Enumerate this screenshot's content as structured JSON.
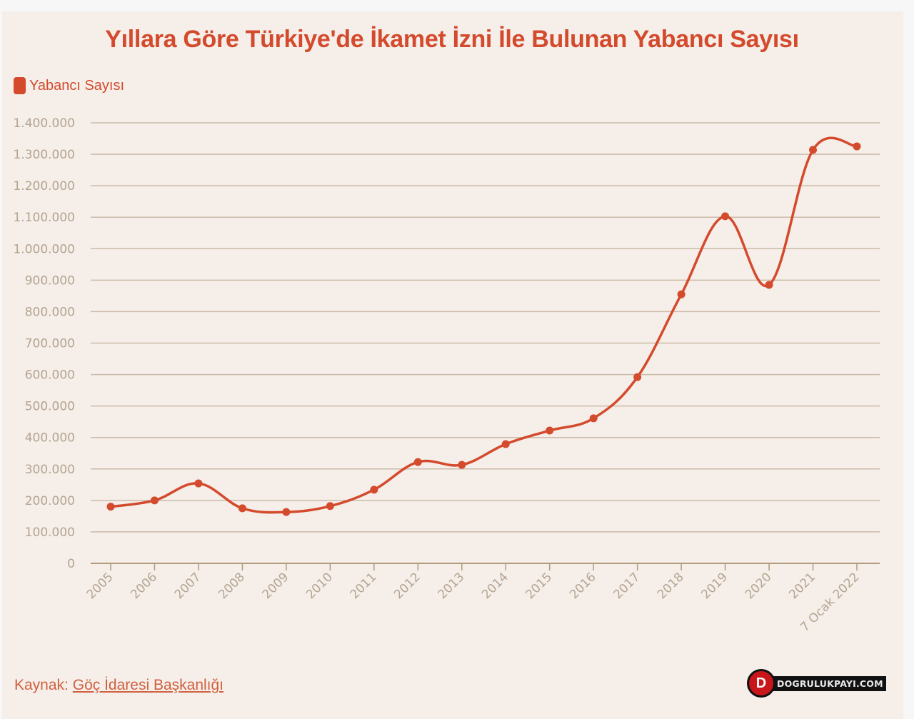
{
  "header": {
    "title": "Yıllara Göre Türkiye'de İkamet İzni İle Bulunan Yabancı Sayısı"
  },
  "legend": {
    "label": "Yabancı Sayısı",
    "color": "#d44a2c"
  },
  "footer": {
    "source_prefix": "Kaynak:",
    "source_link": "Göç İdaresi Başkanlığı",
    "brand": "DOGRULUKPAYI.COM",
    "brand_icon": "d-logo-icon"
  },
  "colors": {
    "line": "#d44a2c",
    "grid": "#cbbba8",
    "axis": "#b49a7c",
    "tick_label": "#b5a592",
    "background": "#f5eee9"
  },
  "chart_data": {
    "type": "line",
    "title": "Yıllara Göre Türkiye'de İkamet İzni İle Bulunan Yabancı Sayısı",
    "xlabel": "",
    "ylabel": "",
    "legend_position": "top-left",
    "grid": true,
    "smooth": true,
    "ylim": [
      0,
      1400000
    ],
    "yticks": [
      0,
      100000,
      200000,
      300000,
      400000,
      500000,
      600000,
      700000,
      800000,
      900000,
      1000000,
      1100000,
      1200000,
      1300000,
      1400000
    ],
    "ytick_labels": [
      "0",
      "100.000",
      "200.000",
      "300.000",
      "400.000",
      "500.000",
      "600.000",
      "700.000",
      "800.000",
      "900.000",
      "1.000.000",
      "1.100.000",
      "1.200.000",
      "1.300.000",
      "1.400.000"
    ],
    "categories": [
      "2005",
      "2006",
      "2007",
      "2008",
      "2009",
      "2010",
      "2011",
      "2012",
      "2013",
      "2014",
      "2015",
      "2016",
      "2017",
      "2018",
      "2019",
      "2020",
      "2021",
      "7 Ocak 2022"
    ],
    "series": [
      {
        "name": "Yabancı Sayısı",
        "values": [
          180000,
          200000,
          254000,
          175000,
          163000,
          182000,
          234000,
          322000,
          313000,
          379000,
          422000,
          461000,
          592000,
          855000,
          1103000,
          885000,
          1314000,
          1325000
        ]
      }
    ]
  }
}
